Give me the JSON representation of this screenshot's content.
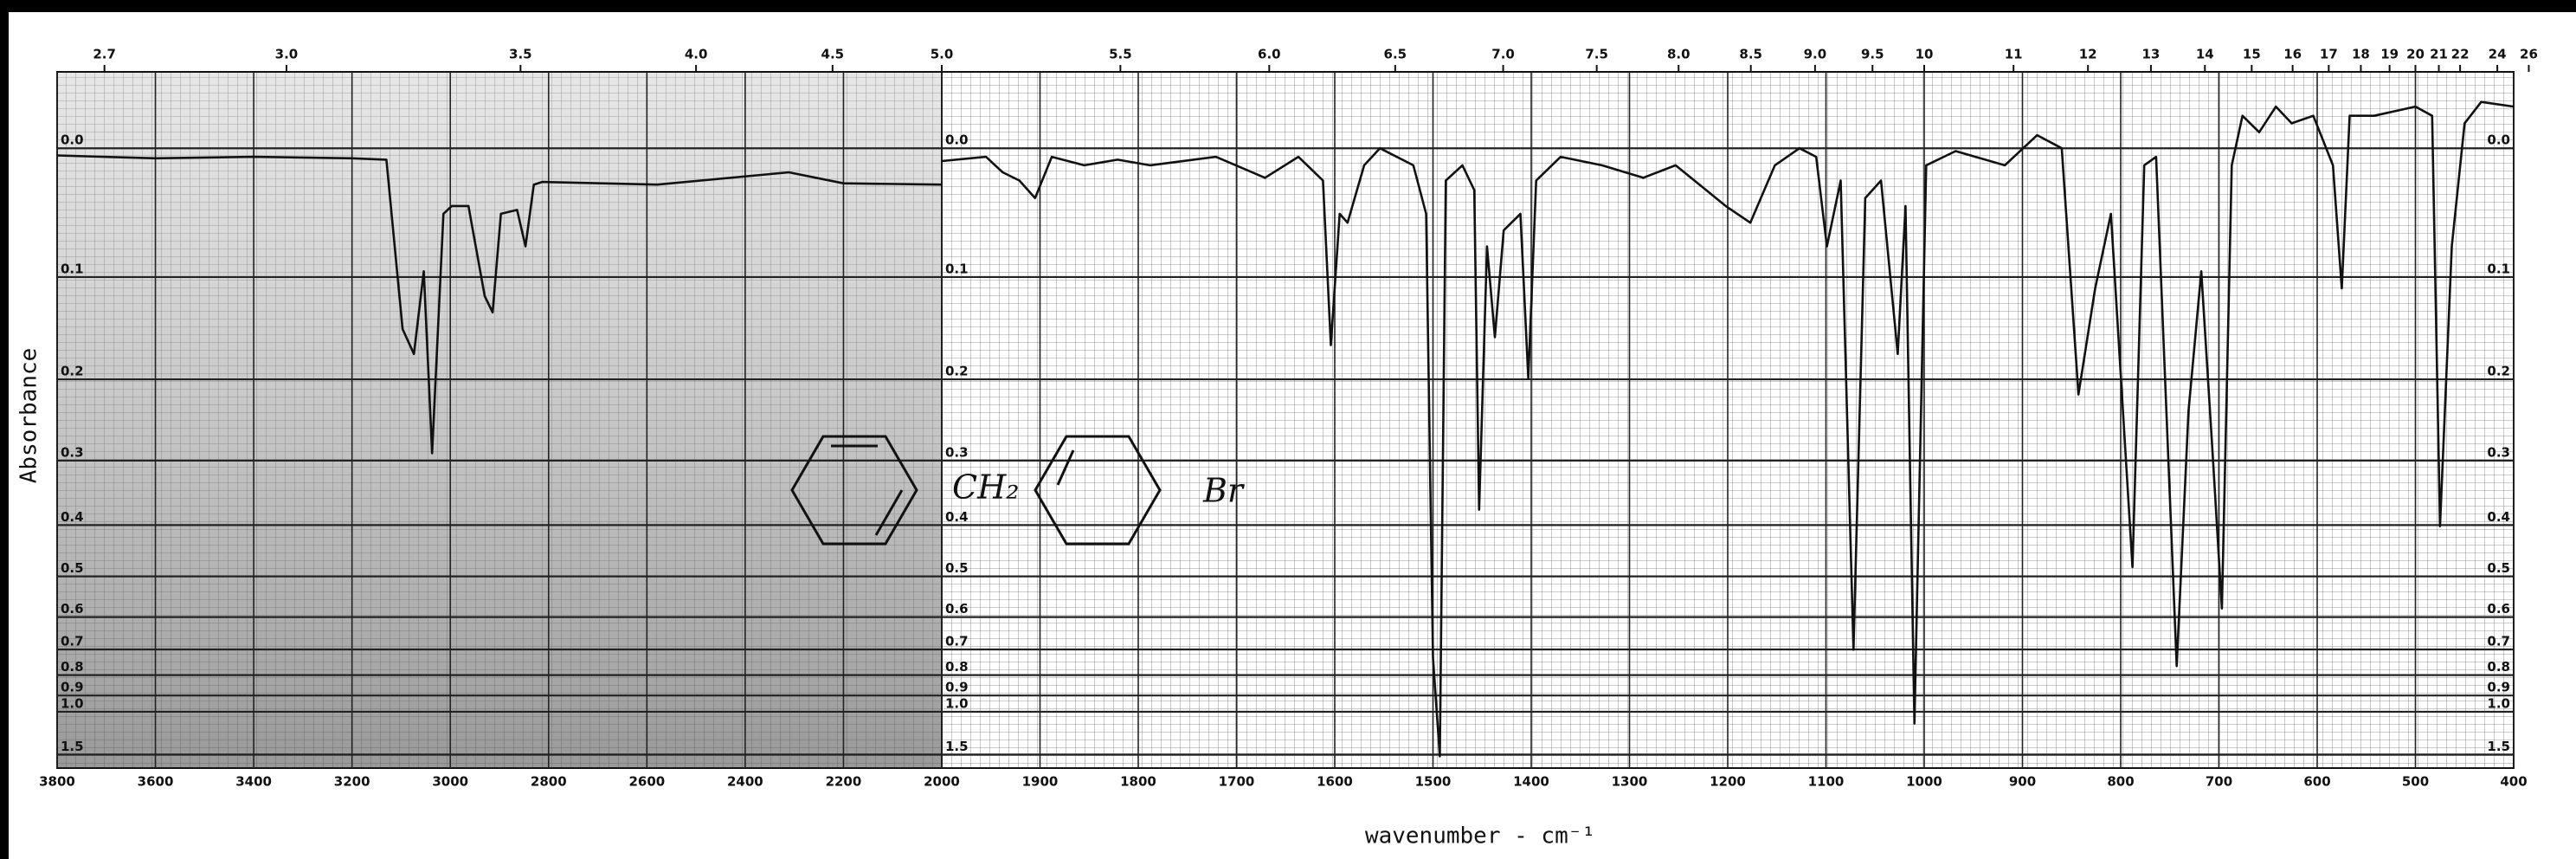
{
  "chart_data": [
    {
      "type": "line",
      "y_label": "Absorbance",
      "yscale": "absorbance",
      "grid": true,
      "shade": true,
      "xlim": [
        3800,
        2000
      ],
      "ylim": [
        -0.05,
        2.0
      ],
      "xticks": [
        3800,
        3600,
        3400,
        3200,
        3000,
        2800,
        2600,
        2400,
        2200,
        2000
      ],
      "x2ticks": [
        2.7,
        {
          "value": 3,
          "label": "3.0"
        },
        3.5,
        {
          "value": 4,
          "label": "4.0"
        },
        4.5,
        {
          "value": 5,
          "label": "5.0"
        }
      ],
      "yticks": [
        {
          "value": 0,
          "label": "0.0"
        },
        0.1,
        0.2,
        0.3,
        0.4,
        0.5,
        0.6,
        0.7,
        0.8,
        0.9,
        {
          "value": 1,
          "label": "1.0"
        },
        1.5
      ],
      "x": [
        3800,
        3600,
        3400,
        3200,
        3130,
        3097,
        3074,
        3054,
        3037,
        3014,
        2997,
        2963,
        2930,
        2914,
        2897,
        2864,
        2847,
        2830,
        2813,
        2579,
        2311,
        2200,
        2000
      ],
      "values": [
        0.005,
        0.007,
        0.006,
        0.007,
        0.008,
        0.148,
        0.173,
        0.095,
        0.29,
        0.048,
        0.042,
        0.042,
        0.117,
        0.132,
        0.048,
        0.045,
        0.074,
        0.026,
        0.024,
        0.026,
        0.017,
        0.025,
        0.026
      ],
      "color": "#111111"
    },
    {
      "type": "line",
      "x_label": "wavenumber - cm⁻¹",
      "yscale": "absorbance",
      "grid": true,
      "shade": false,
      "annotations": [
        "CH₂",
        "Br"
      ],
      "xlim": [
        2000,
        400
      ],
      "ylim": [
        -0.05,
        2.0
      ],
      "xticks": [
        1900,
        1800,
        1700,
        1600,
        1500,
        1400,
        1300,
        1200,
        1100,
        1000,
        900,
        800,
        700,
        600,
        500,
        400
      ],
      "x2ticks": [
        5.5,
        {
          "value": 6,
          "label": "6.0"
        },
        6.5,
        {
          "value": 7,
          "label": "7.0"
        },
        7.5,
        {
          "value": 8,
          "label": "8.0"
        },
        8.5,
        {
          "value": 9,
          "label": "9.0"
        },
        9.5,
        10,
        11,
        12,
        13,
        14,
        15,
        16,
        17,
        18,
        19,
        20,
        21,
        22,
        24,
        26
      ],
      "yticks": [
        {
          "value": 0,
          "label": "0.0"
        },
        0.1,
        0.2,
        0.3,
        0.4,
        0.5,
        0.6,
        0.7,
        0.8,
        0.9,
        {
          "value": 1,
          "label": "1.0"
        },
        1.5
      ],
      "x": [
        2000,
        1955,
        1938,
        1921,
        1905,
        1888,
        1855,
        1821,
        1788,
        1721,
        1671,
        1637,
        1612,
        1604,
        1595,
        1587,
        1570,
        1554,
        1520,
        1507,
        1500,
        1493,
        1487,
        1470,
        1458,
        1453,
        1445,
        1437,
        1428,
        1411,
        1403,
        1395,
        1370,
        1328,
        1286,
        1253,
        1202,
        1177,
        1152,
        1127,
        1110,
        1099,
        1085,
        1072,
        1060,
        1044,
        1027,
        1019,
        1010,
        998,
        968,
        918,
        885,
        860,
        843,
        826,
        810,
        788,
        776,
        764,
        743,
        731,
        718,
        706,
        697,
        687,
        676,
        659,
        642,
        626,
        604,
        584,
        575,
        567,
        542,
        500,
        483,
        475,
        463,
        450,
        433,
        400
      ],
      "values": [
        0.009,
        0.006,
        0.017,
        0.023,
        0.036,
        0.006,
        0.012,
        0.008,
        0.012,
        0.006,
        0.021,
        0.006,
        0.023,
        0.164,
        0.048,
        0.055,
        0.012,
        0,
        0.012,
        0.048,
        0.73,
        1.54,
        0.023,
        0.012,
        0.03,
        0.374,
        0.074,
        0.156,
        0.061,
        0.048,
        0.199,
        0.023,
        0.006,
        0.012,
        0.021,
        0.012,
        0.042,
        0.055,
        0.012,
        0,
        0.006,
        0.074,
        0.023,
        0.701,
        0.036,
        0.023,
        0.173,
        0.042,
        1.09,
        0.012,
        0.002,
        0.012,
        -0.009,
        0,
        0.217,
        0.11,
        0.048,
        0.48,
        0.012,
        0.006,
        0.762,
        0.237,
        0.095,
        0.3,
        0.577,
        0.012,
        -0.022,
        -0.011,
        -0.028,
        -0.017,
        -0.022,
        0.012,
        0.11,
        -0.022,
        -0.022,
        -0.028,
        -0.022,
        0.402,
        0.074,
        -0.017,
        -0.031,
        -0.028
      ],
      "color": "#111111"
    }
  ]
}
